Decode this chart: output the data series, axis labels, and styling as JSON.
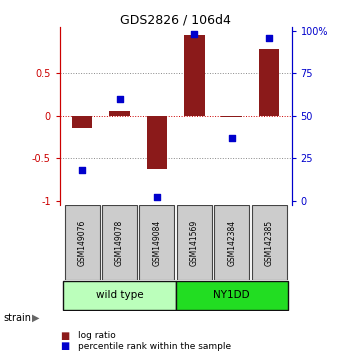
{
  "title": "GDS2826 / 106d4",
  "samples": [
    "GSM149076",
    "GSM149078",
    "GSM149084",
    "GSM141569",
    "GSM142384",
    "GSM142385"
  ],
  "log_ratio": [
    -0.15,
    0.05,
    -0.63,
    0.95,
    -0.02,
    0.78
  ],
  "percentile": [
    18,
    60,
    2,
    98,
    37,
    96
  ],
  "groups": [
    {
      "label": "wild type",
      "indices": [
        0,
        1,
        2
      ],
      "color": "#bbffbb"
    },
    {
      "label": "NY1DD",
      "indices": [
        3,
        4,
        5
      ],
      "color": "#22dd22"
    }
  ],
  "ylim": [
    -1.05,
    1.05
  ],
  "yticks_left": [
    -1,
    -0.5,
    0,
    0.5
  ],
  "yticks_right": [
    0,
    25,
    50,
    75,
    100
  ],
  "bar_color": "#8B1A1A",
  "scatter_color": "#0000cc",
  "zero_line_color": "#cc0000",
  "dotted_color": "#888888",
  "strain_label": "strain",
  "legend_log": "log ratio",
  "legend_pct": "percentile rank within the sample",
  "background_color": "#ffffff",
  "group_box_color": "#cccccc"
}
